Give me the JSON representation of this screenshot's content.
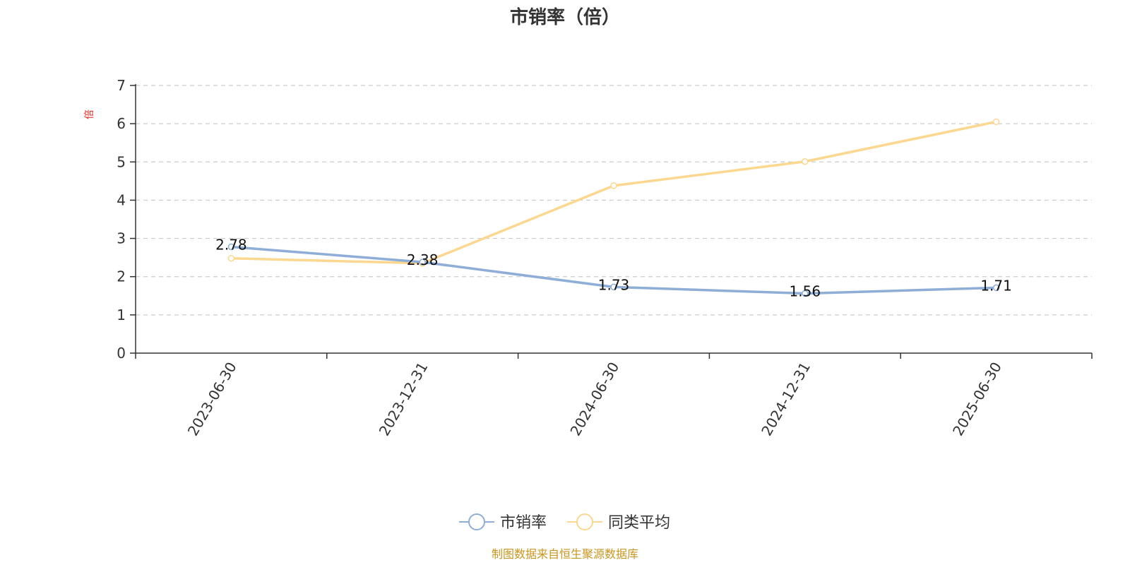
{
  "chart_data": {
    "type": "line",
    "title": "市销率（倍）",
    "ylabel": "倍",
    "categories": [
      "2023-06-30",
      "2023-12-31",
      "2024-06-30",
      "2024-12-31",
      "2025-06-30"
    ],
    "ylim": [
      0,
      7
    ],
    "yticks": [
      0,
      1,
      2,
      3,
      4,
      5,
      6,
      7
    ],
    "grid": true,
    "legend_position": "bottom-center",
    "series": [
      {
        "name": "市销率",
        "values": [
          2.78,
          2.38,
          1.73,
          1.56,
          1.71
        ],
        "labels": [
          "2.78",
          "2.38",
          "1.73",
          "1.56",
          "1.71"
        ],
        "color": "#8eaed8"
      },
      {
        "name": "同类平均",
        "values": [
          2.48,
          2.35,
          4.38,
          5.01,
          6.05
        ],
        "color": "#fbd78f"
      }
    ],
    "source": "制图数据来自恒生聚源数据库"
  }
}
